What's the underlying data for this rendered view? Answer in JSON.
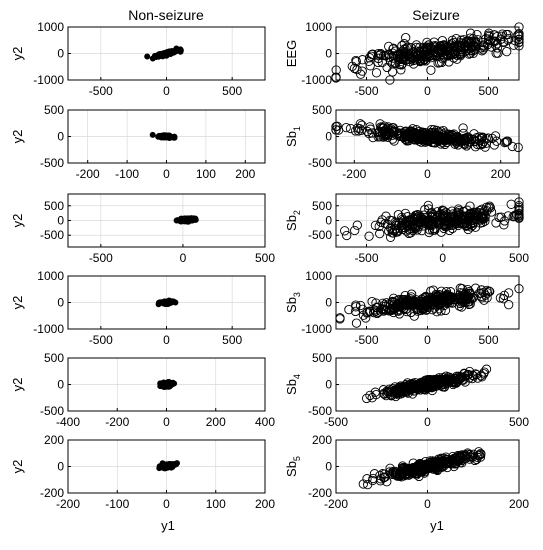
{
  "figure": {
    "column_titles": [
      "Non-seizure",
      "Seizure"
    ],
    "x_axis_label": "y1"
  },
  "chart_data": [
    {
      "type": "scatter",
      "column": "Non-seizure",
      "ylabel": "y2",
      "ylabel_sub": "",
      "xlim": [
        -750,
        750
      ],
      "ylim": [
        -1000,
        1000
      ],
      "xticks": [
        -500,
        0,
        500
      ],
      "yticks": [
        -1000,
        0,
        1000
      ],
      "grid": true,
      "cluster": {
        "center": [
          0,
          0
        ],
        "spread_x": 45,
        "slope": 1.2,
        "spread_y": 30,
        "n": 120
      }
    },
    {
      "type": "scatter",
      "column": "Seizure",
      "ylabel": "EEG",
      "ylabel_sub": "",
      "xlim": [
        -750,
        750
      ],
      "ylim": [
        -1000,
        1000
      ],
      "xticks": [
        -500,
        0,
        500
      ],
      "yticks": [
        -1000,
        0,
        1000
      ],
      "grid": true,
      "cluster": {
        "center": [
          100,
          100
        ],
        "spread_x": 330,
        "slope": 0.7,
        "spread_y": 200,
        "n": 320
      }
    },
    {
      "type": "scatter",
      "column": "Non-seizure",
      "ylabel": "y2",
      "ylabel_sub": "",
      "xlim": [
        -250,
        250
      ],
      "ylim": [
        -500,
        500
      ],
      "xticks": [
        -200,
        -100,
        0,
        100,
        200
      ],
      "yticks": [
        -500,
        0,
        500
      ],
      "grid": true,
      "cluster": {
        "center": [
          0,
          0
        ],
        "spread_x": 10,
        "slope": -0.5,
        "spread_y": 12,
        "n": 100
      }
    },
    {
      "type": "scatter",
      "column": "Seizure",
      "ylabel": "Sb",
      "ylabel_sub": "1",
      "xlim": [
        -250,
        250
      ],
      "ylim": [
        -500,
        500
      ],
      "xticks": [
        -200,
        0,
        200
      ],
      "yticks": [
        -500,
        0,
        500
      ],
      "grid": true,
      "cluster": {
        "center": [
          0,
          0
        ],
        "spread_x": 95,
        "slope": -0.6,
        "spread_y": 60,
        "n": 320
      }
    },
    {
      "type": "scatter",
      "column": "Non-seizure",
      "ylabel": "y2",
      "ylabel_sub": "",
      "xlim": [
        -700,
        500
      ],
      "ylim": [
        -900,
        900
      ],
      "xticks": [
        -500,
        0,
        500
      ],
      "yticks": [
        -500,
        0,
        500
      ],
      "grid": true,
      "cluster": {
        "center": [
          20,
          20
        ],
        "spread_x": 25,
        "slope": 0.3,
        "spread_y": 25,
        "n": 100
      }
    },
    {
      "type": "scatter",
      "column": "Seizure",
      "ylabel": "Sb",
      "ylabel_sub": "2",
      "xlim": [
        -700,
        500
      ],
      "ylim": [
        -900,
        900
      ],
      "xticks": [
        -500,
        0,
        500
      ],
      "yticks": [
        -500,
        0,
        500
      ],
      "grid": true,
      "cluster": {
        "center": [
          0,
          0
        ],
        "spread_x": 230,
        "slope": 0.5,
        "spread_y": 170,
        "n": 320
      }
    },
    {
      "type": "scatter",
      "column": "Non-seizure",
      "ylabel": "y2",
      "ylabel_sub": "",
      "xlim": [
        -750,
        750
      ],
      "ylim": [
        -1000,
        1000
      ],
      "xticks": [
        -500,
        0,
        500
      ],
      "yticks": [
        -1000,
        0,
        1000
      ],
      "grid": true,
      "cluster": {
        "center": [
          0,
          0
        ],
        "spread_x": 25,
        "slope": 0.3,
        "spread_y": 25,
        "n": 100
      }
    },
    {
      "type": "scatter",
      "column": "Seizure",
      "ylabel": "Sb",
      "ylabel_sub": "3",
      "xlim": [
        -750,
        750
      ],
      "ylim": [
        -1000,
        1000
      ],
      "xticks": [
        -500,
        0,
        500
      ],
      "yticks": [
        -1000,
        0,
        1000
      ],
      "grid": true,
      "cluster": {
        "center": [
          0,
          0
        ],
        "spread_x": 260,
        "slope": 0.6,
        "spread_y": 160,
        "n": 320
      }
    },
    {
      "type": "scatter",
      "column": "Non-seizure",
      "ylabel": "y2",
      "ylabel_sub": "",
      "xlim": [
        -400,
        400
      ],
      "ylim": [
        -500,
        500
      ],
      "xticks": [
        -400,
        -200,
        0,
        200,
        400
      ],
      "yticks": [
        -500,
        0,
        500
      ],
      "grid": true,
      "cluster": {
        "center": [
          0,
          0
        ],
        "spread_x": 12,
        "slope": 0.3,
        "spread_y": 20,
        "n": 100
      }
    },
    {
      "type": "scatter",
      "column": "Seizure",
      "ylabel": "Sb",
      "ylabel_sub": "4",
      "xlim": [
        -500,
        500
      ],
      "ylim": [
        -500,
        500
      ],
      "xticks": [
        -500,
        0,
        500
      ],
      "yticks": [
        -500,
        0,
        500
      ],
      "grid": true,
      "cluster": {
        "center": [
          0,
          0
        ],
        "spread_x": 130,
        "slope": 0.7,
        "spread_y": 45,
        "n": 320
      }
    },
    {
      "type": "scatter",
      "column": "Non-seizure",
      "ylabel": "y2",
      "ylabel_sub": "",
      "xlim": [
        -200,
        200
      ],
      "ylim": [
        -200,
        200
      ],
      "xticks": [
        -200,
        -100,
        0,
        100,
        200
      ],
      "yticks": [
        -200,
        0,
        200
      ],
      "grid": true,
      "cluster": {
        "center": [
          2,
          5
        ],
        "spread_x": 8,
        "slope": 0.5,
        "spread_y": 8,
        "n": 100
      }
    },
    {
      "type": "scatter",
      "column": "Seizure",
      "ylabel": "Sb",
      "ylabel_sub": "5",
      "xlim": [
        -200,
        200
      ],
      "ylim": [
        -200,
        200
      ],
      "xticks": [
        -200,
        0,
        200
      ],
      "yticks": [
        -200,
        0,
        200
      ],
      "grid": true,
      "cluster": {
        "center": [
          0,
          0
        ],
        "spread_x": 55,
        "slope": 0.8,
        "spread_y": 18,
        "n": 320
      }
    }
  ]
}
